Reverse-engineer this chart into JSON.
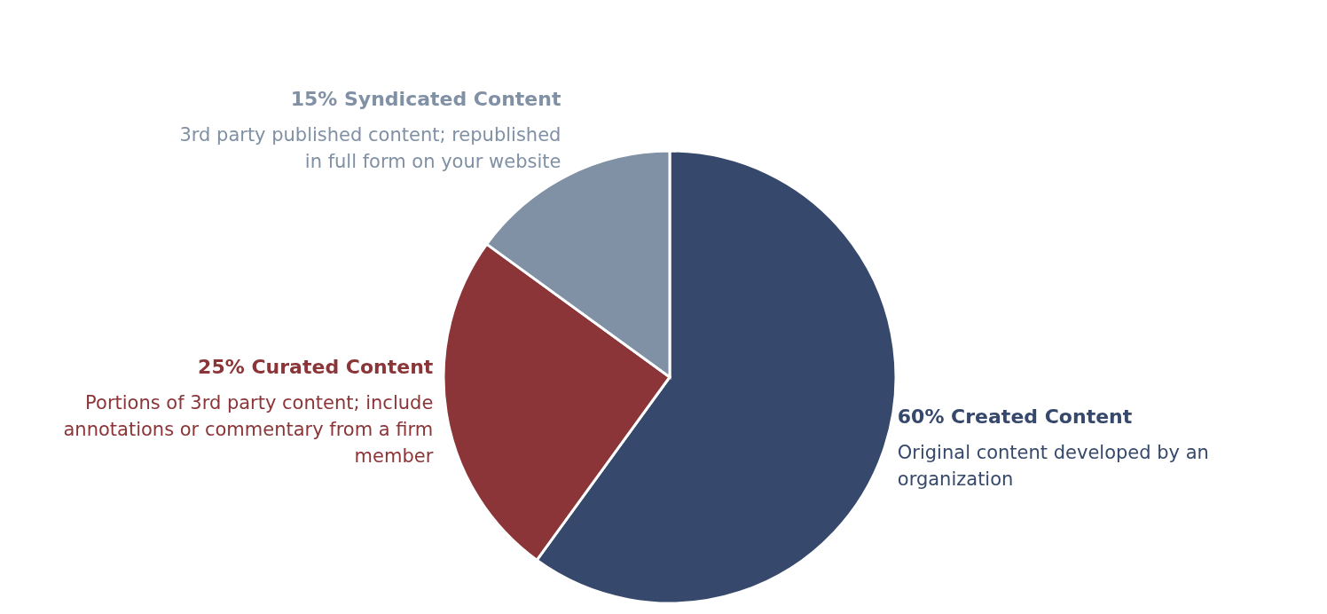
{
  "chart_data": {
    "type": "pie",
    "categories": [
      "Created Content",
      "Curated Content",
      "Syndicated Content"
    ],
    "values": [
      60,
      25,
      15
    ],
    "value_labels": [
      "60%",
      "25%",
      "15%"
    ],
    "colors": [
      "#36486b",
      "#8b3538",
      "#8090a5"
    ],
    "annotations": [
      "Original content developed by an organization",
      "Portions of 3rd party content; include annotations or commentary from a firm member",
      "3rd party published content; republished in full form on your website"
    ]
  }
}
